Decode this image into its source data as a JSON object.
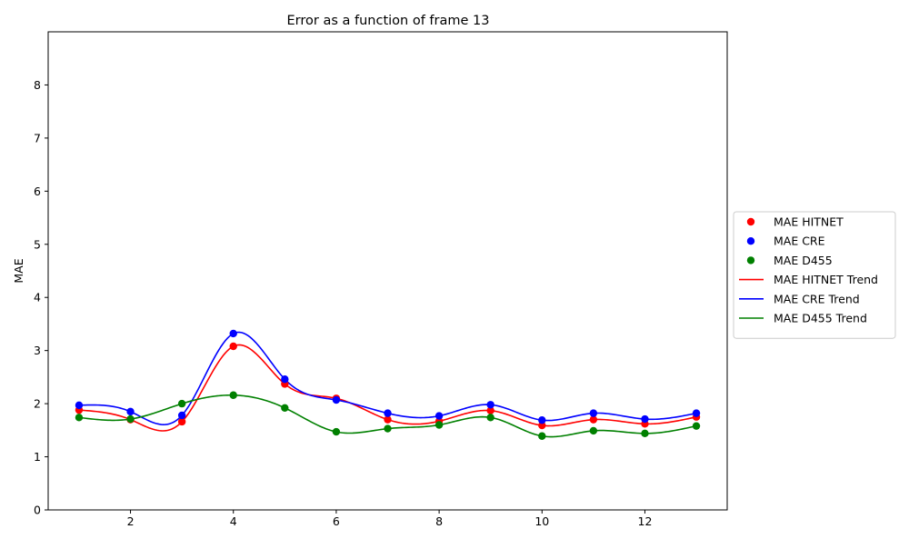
{
  "chart_data": {
    "type": "line",
    "title": "Error as a function of frame 13",
    "xlabel": "",
    "ylabel": "MAE",
    "x": [
      1,
      2,
      3,
      4,
      5,
      6,
      7,
      8,
      9,
      10,
      11,
      12,
      13
    ],
    "xlim": [
      0.4,
      13.6
    ],
    "ylim": [
      0,
      9
    ],
    "xticks": [
      2,
      4,
      6,
      8,
      10,
      12
    ],
    "yticks": [
      0,
      1,
      2,
      3,
      4,
      5,
      6,
      7,
      8
    ],
    "grid": false,
    "legend_position": "outside-right",
    "series": [
      {
        "name": "MAE HITNET",
        "color": "#ff0000",
        "values": [
          1.88,
          1.7,
          1.66,
          3.08,
          2.37,
          2.1,
          1.7,
          1.67,
          1.87,
          1.59,
          1.7,
          1.62,
          1.75
        ]
      },
      {
        "name": "MAE CRE",
        "color": "#0000ff",
        "values": [
          1.97,
          1.85,
          1.78,
          3.32,
          2.46,
          2.07,
          1.82,
          1.77,
          1.98,
          1.69,
          1.82,
          1.71,
          1.82
        ]
      },
      {
        "name": "MAE D455",
        "color": "#008000",
        "values": [
          1.74,
          1.71,
          2.0,
          2.16,
          1.92,
          1.47,
          1.53,
          1.6,
          1.74,
          1.39,
          1.49,
          1.44,
          1.58
        ]
      }
    ],
    "legend": [
      {
        "label": "MAE HITNET",
        "kind": "marker",
        "color": "#ff0000"
      },
      {
        "label": "MAE CRE",
        "kind": "marker",
        "color": "#0000ff"
      },
      {
        "label": "MAE D455",
        "kind": "marker",
        "color": "#008000"
      },
      {
        "label": "MAE HITNET Trend",
        "kind": "line",
        "color": "#ff0000"
      },
      {
        "label": "MAE CRE Trend",
        "kind": "line",
        "color": "#0000ff"
      },
      {
        "label": "MAE D455 Trend",
        "kind": "line",
        "color": "#008000"
      }
    ]
  }
}
